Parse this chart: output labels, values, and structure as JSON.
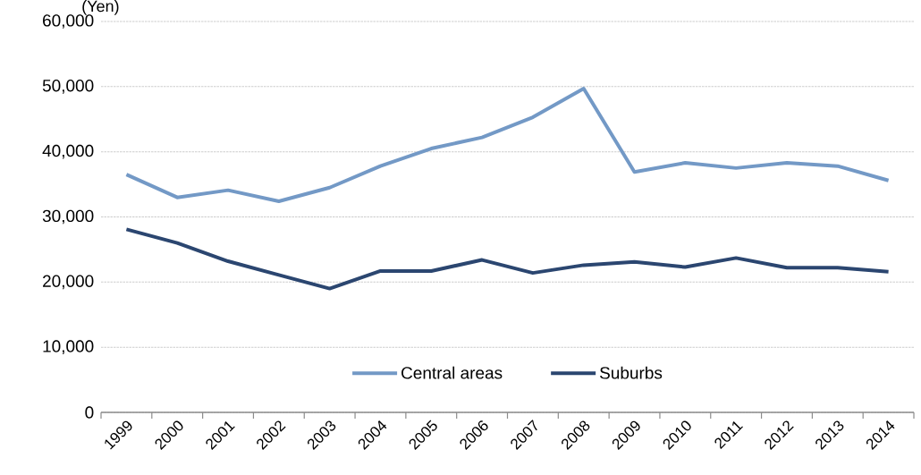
{
  "chart_data": {
    "type": "line",
    "ylabel": "(Yen)",
    "categories": [
      "1999",
      "2000",
      "2001",
      "2002",
      "2003",
      "2004",
      "2005",
      "2006",
      "2007",
      "2008",
      "2009",
      "2010",
      "2011",
      "2012",
      "2013",
      "2014"
    ],
    "series": [
      {
        "name": "Central areas",
        "color": "#7399c6",
        "values": [
          36500,
          33000,
          34100,
          32400,
          34500,
          37800,
          40500,
          42200,
          45300,
          49700,
          36900,
          38300,
          37500,
          38300,
          37800,
          35600
        ]
      },
      {
        "name": "Suburbs",
        "color": "#2b4670",
        "values": [
          28100,
          26000,
          23200,
          21100,
          19000,
          21700,
          21700,
          23400,
          21400,
          22600,
          23100,
          22300,
          23700,
          22200,
          22200,
          21600
        ]
      }
    ],
    "ylim": [
      0,
      60000
    ],
    "yticks": [
      {
        "value": 0,
        "label": "0"
      },
      {
        "value": 10000,
        "label": "10,000"
      },
      {
        "value": 20000,
        "label": "20,000"
      },
      {
        "value": 30000,
        "label": "30,000"
      },
      {
        "value": 40000,
        "label": "40,000"
      },
      {
        "value": 50000,
        "label": "50,000"
      },
      {
        "value": 60000,
        "label": "60,000"
      }
    ],
    "grid": "y",
    "legend": "bottom",
    "marker": "none",
    "line_style": "solid"
  }
}
